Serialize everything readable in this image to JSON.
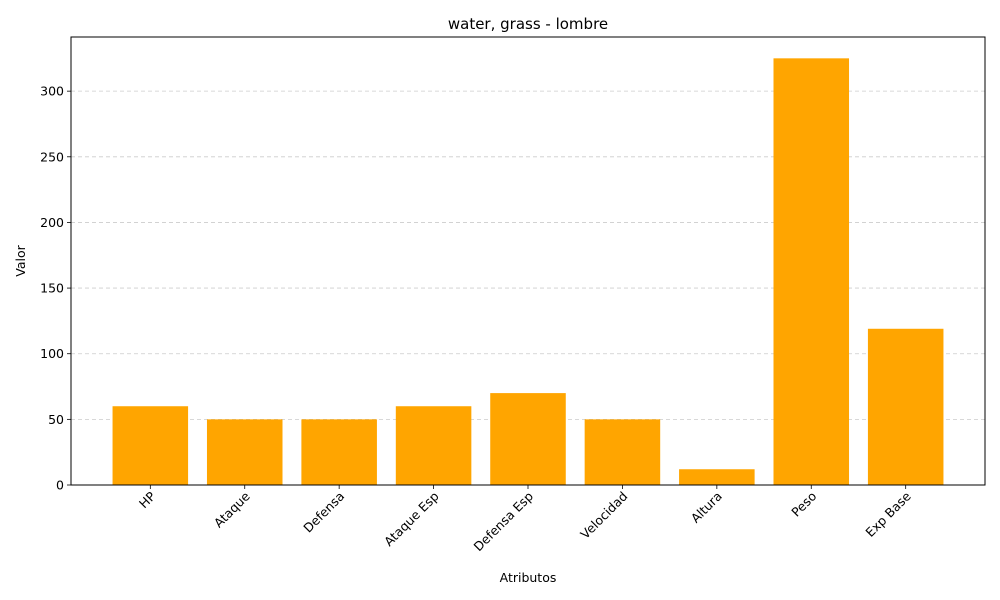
{
  "chart_data": {
    "type": "bar",
    "title": "water, grass - lombre",
    "xlabel": "Atributos",
    "ylabel": "Valor",
    "categories": [
      "HP",
      "Ataque",
      "Defensa",
      "Ataque Esp",
      "Defensa Esp",
      "Velocidad",
      "Altura",
      "Peso",
      "Exp Base"
    ],
    "values": [
      60,
      50,
      50,
      60,
      70,
      50,
      12,
      325,
      119
    ],
    "ylim": [
      0,
      341.25
    ],
    "yticks": [
      0,
      50,
      100,
      150,
      200,
      250,
      300
    ],
    "grid": "y-dashed",
    "bar_color": "#ffa500",
    "legend": "none"
  }
}
